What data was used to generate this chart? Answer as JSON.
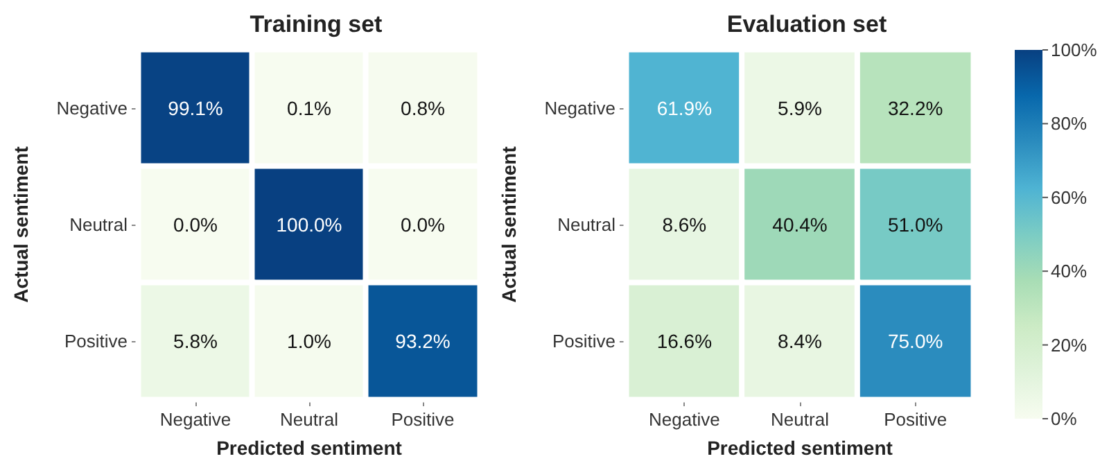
{
  "chart_data": [
    {
      "type": "heatmap",
      "title": "Training set",
      "xlabel": "Predicted sentiment",
      "ylabel": "Actual sentiment",
      "categories": [
        "Negative",
        "Neutral",
        "Positive"
      ],
      "y_categories": [
        "Negative",
        "Neutral",
        "Positive"
      ],
      "cells": [
        [
          99.1,
          0.1,
          0.8
        ],
        [
          0.0,
          100.0,
          0.0
        ],
        [
          5.8,
          1.0,
          93.2
        ]
      ],
      "cell_labels": [
        [
          "99.1%",
          "0.1%",
          "0.8%"
        ],
        [
          "0.0%",
          "100.0%",
          "0.0%"
        ],
        [
          "5.8%",
          "1.0%",
          "93.2%"
        ]
      ]
    },
    {
      "type": "heatmap",
      "title": "Evaluation set",
      "xlabel": "Predicted sentiment",
      "ylabel": "Actual sentiment",
      "categories": [
        "Negative",
        "Neutral",
        "Positive"
      ],
      "y_categories": [
        "Negative",
        "Neutral",
        "Positive"
      ],
      "cells": [
        [
          61.9,
          5.9,
          32.2
        ],
        [
          8.6,
          40.4,
          51.0
        ],
        [
          16.6,
          8.4,
          75.0
        ]
      ],
      "cell_labels": [
        [
          "61.9%",
          "5.9%",
          "32.2%"
        ],
        [
          "8.6%",
          "40.4%",
          "51.0%"
        ],
        [
          "16.6%",
          "8.4%",
          "75.0%"
        ]
      ],
      "clim": [
        0,
        100
      ],
      "cticks": [
        {
          "value": 0,
          "label": "0%"
        },
        {
          "value": 20,
          "label": "20%"
        },
        {
          "value": 40,
          "label": "40%"
        },
        {
          "value": 60,
          "label": "60%"
        },
        {
          "value": 80,
          "label": "80%"
        },
        {
          "value": 100,
          "label": "100%"
        }
      ]
    }
  ]
}
